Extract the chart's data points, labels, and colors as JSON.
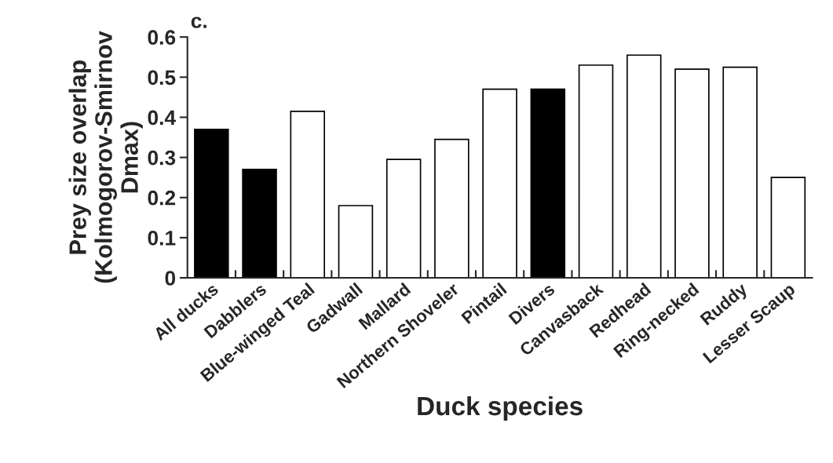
{
  "chart_data": {
    "type": "bar",
    "title": "c.",
    "xlabel": "Duck species",
    "ylabel": "Prey size overlap\n(Kolmogorov-Smirnov\nDmax)",
    "categories": [
      "All ducks",
      "Dabblers",
      "Blue-winged Teal",
      "Gadwall",
      "Mallard",
      "Northern Shoveler",
      "Pintail",
      "Divers",
      "Canvasback",
      "Redhead",
      "Ring-necked",
      "Ruddy",
      "Lesser Scaup"
    ],
    "values": [
      0.37,
      0.27,
      0.415,
      0.18,
      0.295,
      0.345,
      0.47,
      0.47,
      0.53,
      0.555,
      0.52,
      0.525,
      0.25
    ],
    "colors": [
      "#000000",
      "#000000",
      "#ffffff",
      "#ffffff",
      "#ffffff",
      "#ffffff",
      "#ffffff",
      "#000000",
      "#ffffff",
      "#ffffff",
      "#ffffff",
      "#ffffff",
      "#ffffff"
    ],
    "ylim": [
      0,
      0.6
    ],
    "yticks": [
      0,
      0.1,
      0.2,
      0.3,
      0.4,
      0.5,
      0.6
    ],
    "grid": false,
    "legend": false
  }
}
